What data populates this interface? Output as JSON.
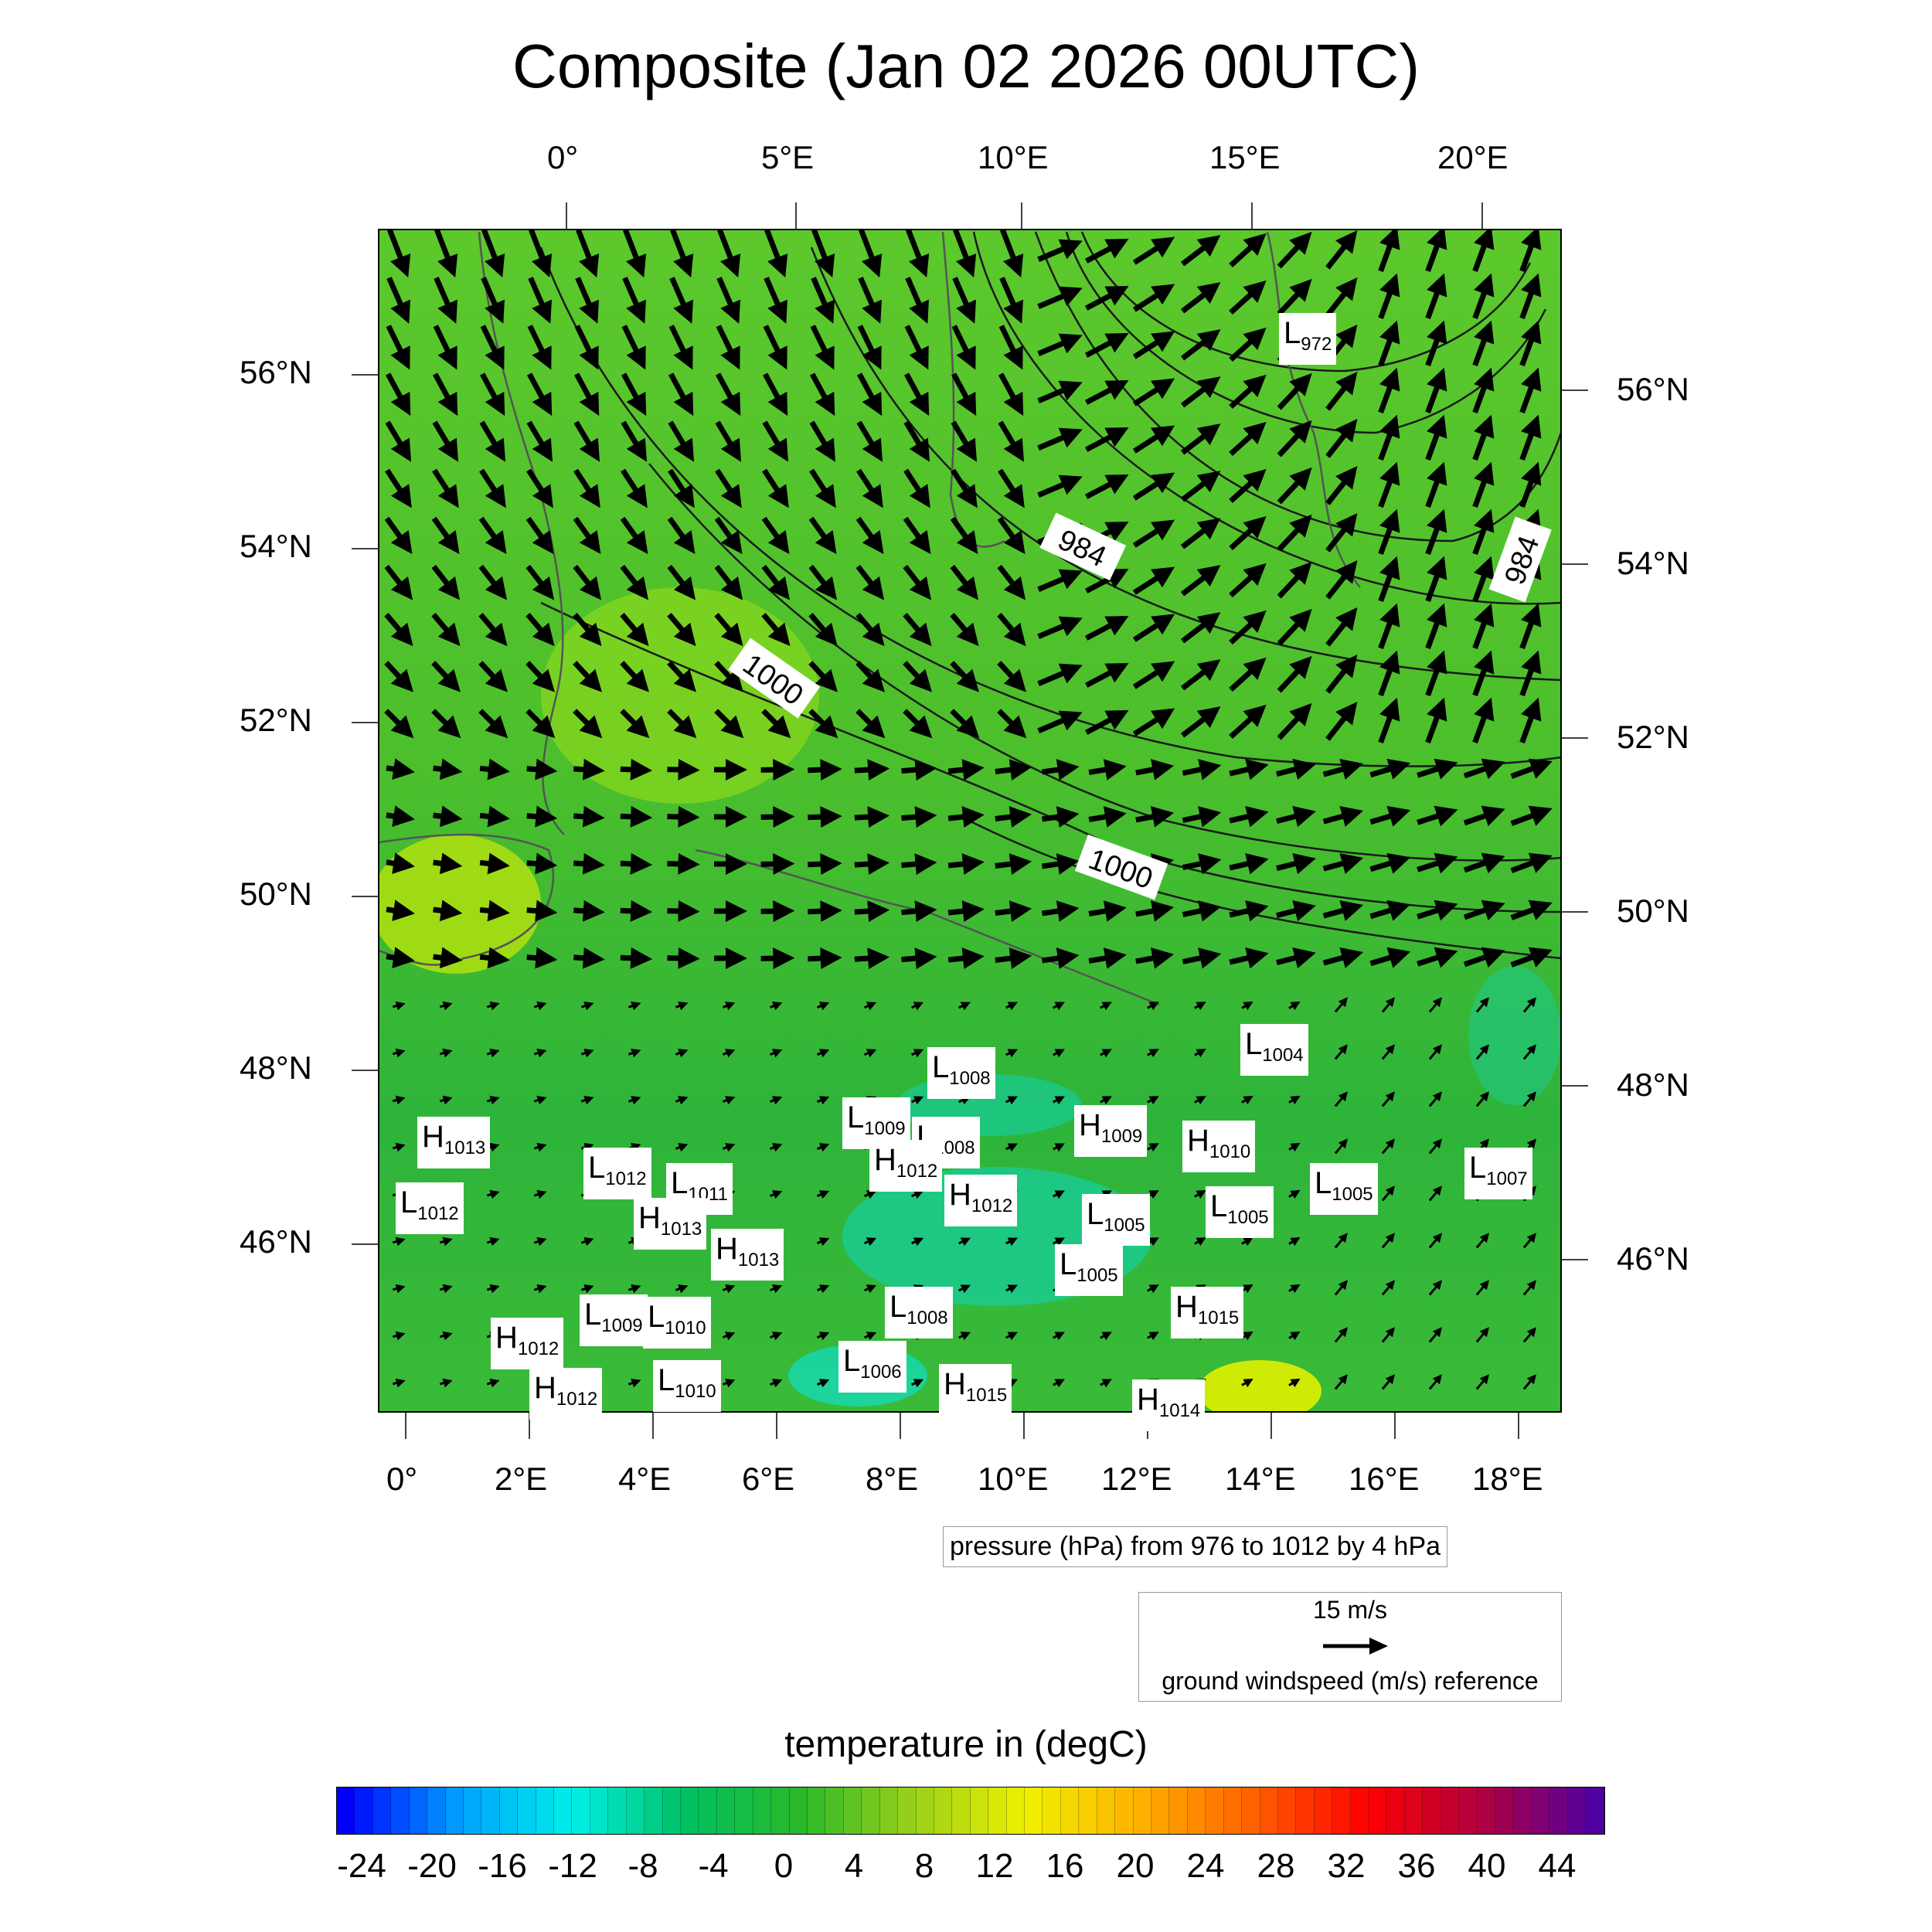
{
  "title": "Composite (Jan 02 2026 00UTC)",
  "axes": {
    "top_lon_ticks": [
      "0°",
      "5°E",
      "10°E",
      "15°E",
      "20°E"
    ],
    "bottom_lon_ticks": [
      "0°",
      "2°E",
      "4°E",
      "6°E",
      "8°E",
      "10°E",
      "12°E",
      "14°E",
      "16°E",
      "18°E"
    ],
    "left_lat_ticks": [
      "56°N",
      "54°N",
      "52°N",
      "50°N",
      "48°N",
      "46°N"
    ],
    "right_lat_ticks": [
      "56°N",
      "54°N",
      "52°N",
      "50°N",
      "48°N",
      "46°N"
    ]
  },
  "contour_labels": [
    "984",
    "984",
    "1000",
    "1000"
  ],
  "pressure_note": "pressure (hPa) from 976 to 1012 by 4 hPa",
  "wind_reference": {
    "speed_label": "15 m/s",
    "caption": "ground windspeed (m/s) reference"
  },
  "colorbar": {
    "title": "temperature in (degC)",
    "labels": [
      "-24",
      "-20",
      "-16",
      "-12",
      "-8",
      "-4",
      "0",
      "4",
      "8",
      "12",
      "16",
      "20",
      "24",
      "28",
      "32",
      "36",
      "40",
      "44"
    ],
    "color_stops": [
      "#0000ff",
      "#00a0ff",
      "#00f0e8",
      "#00c060",
      "#2ab82a",
      "#9ad01a",
      "#f0f000",
      "#ffb000",
      "#ff6000",
      "#ff0000",
      "#b00040",
      "#5000a0"
    ]
  },
  "systems": [
    {
      "type": "L",
      "value": "972"
    },
    {
      "type": "L",
      "value": "1008"
    },
    {
      "type": "L",
      "value": "1004"
    },
    {
      "type": "L",
      "value": "1009"
    },
    {
      "type": "L",
      "value": "1008"
    },
    {
      "type": "H",
      "value": "1009"
    },
    {
      "type": "H",
      "value": "1010"
    },
    {
      "type": "H",
      "value": "1013"
    },
    {
      "type": "H",
      "value": "1012"
    },
    {
      "type": "L",
      "value": "1012"
    },
    {
      "type": "L",
      "value": "1011"
    },
    {
      "type": "H",
      "value": "1012"
    },
    {
      "type": "L",
      "value": "1007"
    },
    {
      "type": "L",
      "value": "1012"
    },
    {
      "type": "H",
      "value": "1013"
    },
    {
      "type": "L",
      "value": "1005"
    },
    {
      "type": "L",
      "value": "1005"
    },
    {
      "type": "L",
      "value": "1005"
    },
    {
      "type": "H",
      "value": "1013"
    },
    {
      "type": "L",
      "value": "1005"
    },
    {
      "type": "L",
      "value": "1008"
    },
    {
      "type": "H",
      "value": "1015"
    },
    {
      "type": "L",
      "value": "1009"
    },
    {
      "type": "L",
      "value": "1010"
    },
    {
      "type": "H",
      "value": "1012"
    },
    {
      "type": "L",
      "value": "1006"
    },
    {
      "type": "H",
      "value": "1012"
    },
    {
      "type": "L",
      "value": "1010"
    },
    {
      "type": "H",
      "value": "1015"
    },
    {
      "type": "H",
      "value": "1014"
    }
  ]
}
